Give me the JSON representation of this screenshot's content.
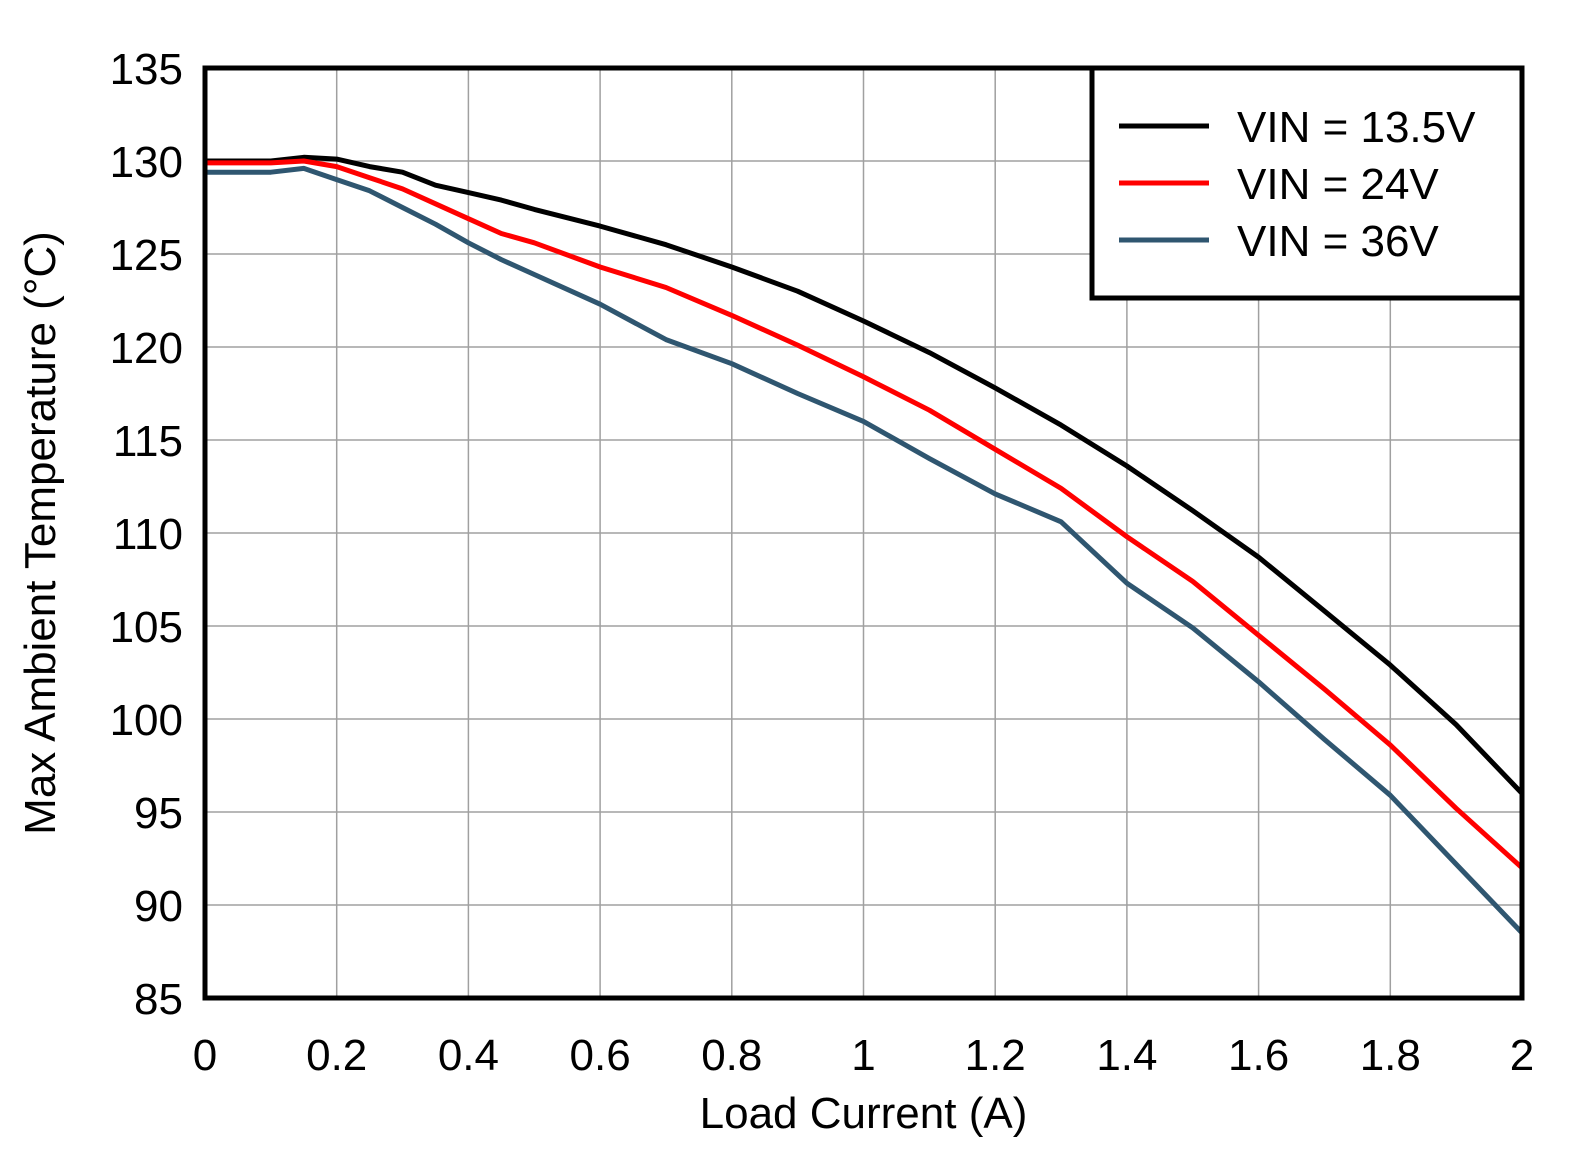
{
  "chart_data": {
    "type": "line",
    "title": "",
    "xlabel": "Load Current (A)",
    "ylabel": "Max Ambient Temperature (°C)",
    "xlim": [
      0,
      2
    ],
    "ylim": [
      85,
      135
    ],
    "x_ticks": [
      "0",
      "0.2",
      "0.4",
      "0.6",
      "0.8",
      "1",
      "1.2",
      "1.4",
      "1.6",
      "1.8",
      "2"
    ],
    "y_ticks": [
      "85",
      "90",
      "95",
      "100",
      "105",
      "110",
      "115",
      "120",
      "125",
      "130",
      "135"
    ],
    "grid": true,
    "legend_position": "top-right",
    "series": [
      {
        "name": "VIN = 13.5V",
        "color": "#000000",
        "x": [
          0,
          0.1,
          0.15,
          0.2,
          0.25,
          0.3,
          0.35,
          0.4,
          0.45,
          0.5,
          0.6,
          0.7,
          0.8,
          0.9,
          1.0,
          1.1,
          1.2,
          1.3,
          1.4,
          1.5,
          1.6,
          1.7,
          1.8,
          1.9,
          2.0
        ],
        "y": [
          130,
          130,
          130.2,
          130.1,
          129.7,
          129.4,
          128.7,
          128.3,
          127.9,
          127.4,
          126.5,
          125.5,
          124.3,
          123.0,
          121.4,
          119.7,
          117.8,
          115.8,
          113.6,
          111.2,
          108.7,
          105.8,
          102.9,
          99.7,
          96.0
        ]
      },
      {
        "name": "VIN = 24V",
        "color": "#ff0000",
        "x": [
          0,
          0.1,
          0.15,
          0.2,
          0.25,
          0.3,
          0.35,
          0.4,
          0.45,
          0.5,
          0.6,
          0.7,
          0.8,
          0.9,
          1.0,
          1.1,
          1.2,
          1.3,
          1.4,
          1.5,
          1.6,
          1.7,
          1.8,
          1.9,
          2.0
        ],
        "y": [
          129.9,
          129.9,
          130.0,
          129.7,
          129.1,
          128.5,
          127.7,
          126.9,
          126.1,
          125.6,
          124.3,
          123.2,
          121.7,
          120.1,
          118.4,
          116.6,
          114.5,
          112.4,
          109.8,
          107.4,
          104.5,
          101.6,
          98.6,
          95.2,
          92.0
        ]
      },
      {
        "name": "VIN = 36V",
        "color": "#2f5670",
        "x": [
          0,
          0.1,
          0.15,
          0.2,
          0.25,
          0.3,
          0.35,
          0.4,
          0.45,
          0.5,
          0.6,
          0.7,
          0.8,
          0.9,
          1.0,
          1.1,
          1.2,
          1.3,
          1.4,
          1.5,
          1.6,
          1.7,
          1.8,
          1.9,
          2.0
        ],
        "y": [
          129.4,
          129.4,
          129.6,
          129.0,
          128.4,
          127.5,
          126.6,
          125.6,
          124.7,
          123.9,
          122.3,
          120.4,
          119.1,
          117.5,
          116.0,
          114.0,
          112.1,
          110.6,
          107.3,
          104.9,
          102.0,
          98.9,
          95.9,
          92.2,
          88.5
        ]
      }
    ]
  }
}
